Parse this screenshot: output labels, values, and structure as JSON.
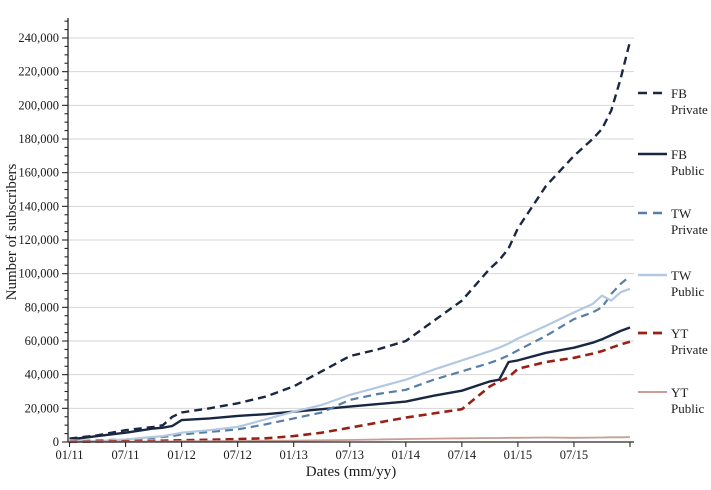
{
  "chart_data": {
    "type": "line",
    "title": "",
    "xlabel": "Dates (mm/yy)",
    "ylabel": "Number of subscribers",
    "grid": "horizontal-major",
    "legend_position": "right",
    "ylim": [
      0,
      240000
    ],
    "y_major_step": 20000,
    "y_minor_step": 5000,
    "x_range_months_from_0111": [
      0,
      60
    ],
    "x_tick_months": [
      0,
      6,
      12,
      18,
      24,
      30,
      36,
      42,
      48,
      54
    ],
    "x_tick_labels": [
      "01/11",
      "07/11",
      "01/12",
      "07/12",
      "01/13",
      "07/13",
      "01/14",
      "07/14",
      "01/15",
      "07/15"
    ],
    "x_months": [
      0,
      3,
      6,
      9,
      10,
      11,
      12,
      15,
      18,
      21,
      24,
      27,
      30,
      33,
      36,
      39,
      42,
      45,
      46,
      47,
      48,
      51,
      54,
      56,
      57,
      58,
      59,
      60
    ],
    "series": [
      {
        "name": "FB Private",
        "label_line1": "FB",
        "label_line2": "Private",
        "color": "#1a2742",
        "style": "dashed",
        "width": 2.4,
        "values": [
          2000,
          4000,
          7000,
          9000,
          10000,
          15000,
          17500,
          20000,
          23000,
          27000,
          33000,
          42000,
          51000,
          55000,
          60000,
          72000,
          84000,
          103000,
          108000,
          115000,
          127000,
          152000,
          170000,
          180000,
          186000,
          197000,
          216000,
          238000
        ]
      },
      {
        "name": "FB Public",
        "label_line1": "FB",
        "label_line2": "Public",
        "color": "#1a2742",
        "style": "solid",
        "width": 2.4,
        "values": [
          1500,
          3500,
          5500,
          8000,
          8500,
          9500,
          13000,
          14000,
          15500,
          16500,
          18000,
          19500,
          21000,
          22500,
          24000,
          27500,
          30500,
          36000,
          37000,
          47500,
          48500,
          53000,
          56000,
          59000,
          61000,
          63500,
          66000,
          68000
        ]
      },
      {
        "name": "TW Private",
        "label_line1": "TW",
        "label_line2": "Private",
        "color": "#567ea6",
        "style": "dashed",
        "width": 2.2,
        "values": [
          500,
          1000,
          1500,
          2500,
          3000,
          3500,
          4500,
          6000,
          7500,
          10500,
          14000,
          17500,
          25000,
          28500,
          31000,
          37000,
          42000,
          47000,
          49000,
          51500,
          54500,
          63000,
          73000,
          77000,
          80000,
          88000,
          94000,
          98500
        ]
      },
      {
        "name": "TW Public",
        "label_line1": "TW",
        "label_line2": "Public",
        "color": "#b3c9e2",
        "style": "solid",
        "width": 2.2,
        "values": [
          1000,
          500,
          1500,
          3000,
          3500,
          4500,
          5500,
          7000,
          9000,
          13500,
          18000,
          22000,
          28000,
          32500,
          37000,
          43000,
          48500,
          54000,
          56000,
          58500,
          61500,
          69000,
          77000,
          82000,
          87000,
          84000,
          89000,
          91000
        ]
      },
      {
        "name": "YT Private",
        "label_line1": "YT",
        "label_line2": "Private",
        "color": "#992015",
        "style": "dashed",
        "width": 2.6,
        "values": [
          100,
          300,
          500,
          700,
          800,
          900,
          1000,
          1300,
          1700,
          2200,
          3500,
          5500,
          8500,
          11500,
          14500,
          17000,
          19500,
          33000,
          36000,
          38500,
          43500,
          47500,
          50000,
          52500,
          54000,
          56000,
          58000,
          59500
        ]
      },
      {
        "name": "YT Public",
        "label_line1": "YT",
        "label_line2": "Public",
        "color": "#c79d96",
        "style": "solid",
        "width": 1.8,
        "values": [
          100,
          150,
          200,
          300,
          320,
          350,
          400,
          500,
          600,
          700,
          800,
          1000,
          1200,
          1500,
          1800,
          2000,
          2200,
          2400,
          2400,
          2500,
          2500,
          2700,
          2500,
          2600,
          2700,
          2800,
          2800,
          2900
        ]
      }
    ],
    "colors": {
      "gridline": "#d6d6d6",
      "axis": "#262626",
      "text": "#1a1a1a",
      "background": "#ffffff"
    }
  }
}
